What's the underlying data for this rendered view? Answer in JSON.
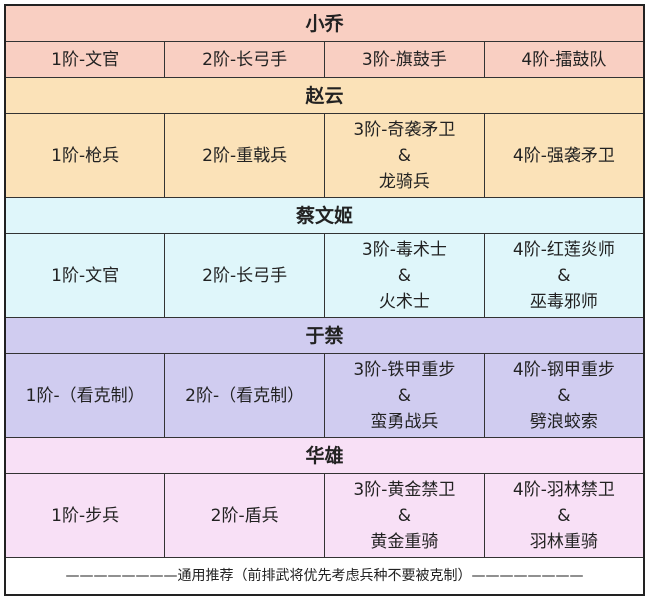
{
  "groups": [
    {
      "name": "小乔",
      "color": "#f9cfc2",
      "cells": [
        [
          "1阶-文官"
        ],
        [
          "2阶-长弓手"
        ],
        [
          "3阶-旗鼓手"
        ],
        [
          "4阶-擂鼓队"
        ]
      ]
    },
    {
      "name": "赵云",
      "color": "#fbe2b8",
      "cells": [
        [
          "1阶-枪兵"
        ],
        [
          "2阶-重戟兵"
        ],
        [
          "3阶-奇袭矛卫",
          "&",
          "龙骑兵"
        ],
        [
          "4阶-强袭矛卫"
        ]
      ]
    },
    {
      "name": "蔡文姬",
      "color": "#dff6fa",
      "cells": [
        [
          "1阶-文官"
        ],
        [
          "2阶-长弓手"
        ],
        [
          "3阶-毒术士",
          "&",
          "火术士"
        ],
        [
          "4阶-红莲炎师",
          "&",
          "巫毒邪师"
        ]
      ]
    },
    {
      "name": "于禁",
      "color": "#d0ccf0",
      "cells": [
        [
          "1阶-（看克制）"
        ],
        [
          "2阶-（看克制）"
        ],
        [
          "3阶-铁甲重步",
          "&",
          "蛮勇战兵"
        ],
        [
          "4阶-钢甲重步",
          "&",
          "劈浪蛟索"
        ]
      ]
    },
    {
      "name": "华雄",
      "color": "#f8e0f6",
      "cells": [
        [
          "1阶-步兵"
        ],
        [
          "2阶-盾兵"
        ],
        [
          "3阶-黄金禁卫",
          "&",
          "黄金重骑"
        ],
        [
          "4阶-羽林禁卫",
          "&",
          "羽林重骑"
        ]
      ]
    }
  ],
  "footer": "————————通用推荐（前排武将优先考虑兵种不要被克制）————————"
}
